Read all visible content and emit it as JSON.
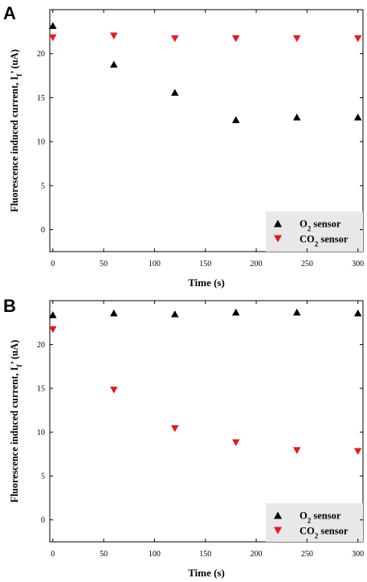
{
  "chart_data": [
    {
      "panel": "A",
      "type": "scatter",
      "xlabel": "Time (s)",
      "ylabel": "Fluorescence induced current, I",
      "ylabel_sub": "f",
      "ylabel_tail": "’ (uA)",
      "xlim": [
        -3,
        305
      ],
      "ylim": [
        -2.5,
        25
      ],
      "xticks": [
        0,
        50,
        100,
        150,
        200,
        250,
        300
      ],
      "yticks": [
        0,
        5,
        10,
        15,
        20
      ],
      "legend": "bottom-right",
      "series": [
        {
          "name": "O",
          "name_sub": "2",
          "name_tail": " sensor",
          "marker": "triangle-up",
          "color": "#000000",
          "x": [
            0,
            60,
            120,
            180,
            240,
            300
          ],
          "y": [
            23.2,
            18.8,
            15.6,
            12.5,
            12.8,
            12.8
          ]
        },
        {
          "name": "CO",
          "name_sub": "2",
          "name_tail": " sensor",
          "marker": "triangle-down",
          "color": "#e8191c",
          "x": [
            0,
            60,
            120,
            180,
            240,
            300
          ],
          "y": [
            21.8,
            22.0,
            21.7,
            21.7,
            21.7,
            21.7
          ]
        }
      ]
    },
    {
      "panel": "B",
      "type": "scatter",
      "xlabel": "Time (s)",
      "ylabel": "Fluorescence induced current, I",
      "ylabel_sub": "f",
      "ylabel_tail": "’ (uA)",
      "xlim": [
        -3,
        305
      ],
      "ylim": [
        -2.5,
        25
      ],
      "xticks": [
        0,
        50,
        100,
        150,
        200,
        250,
        300
      ],
      "yticks": [
        0,
        5,
        10,
        15,
        20
      ],
      "legend": "bottom-right",
      "series": [
        {
          "name": "O",
          "name_sub": "2",
          "name_tail": " sensor",
          "marker": "triangle-up",
          "color": "#000000",
          "x": [
            0,
            60,
            120,
            180,
            240,
            300
          ],
          "y": [
            23.4,
            23.6,
            23.5,
            23.7,
            23.7,
            23.6
          ]
        },
        {
          "name": "CO",
          "name_sub": "2",
          "name_tail": " sensor",
          "marker": "triangle-down",
          "color": "#e8191c",
          "x": [
            0,
            60,
            120,
            180,
            240,
            300
          ],
          "y": [
            21.7,
            14.8,
            10.4,
            8.8,
            7.9,
            7.8
          ]
        }
      ]
    }
  ]
}
